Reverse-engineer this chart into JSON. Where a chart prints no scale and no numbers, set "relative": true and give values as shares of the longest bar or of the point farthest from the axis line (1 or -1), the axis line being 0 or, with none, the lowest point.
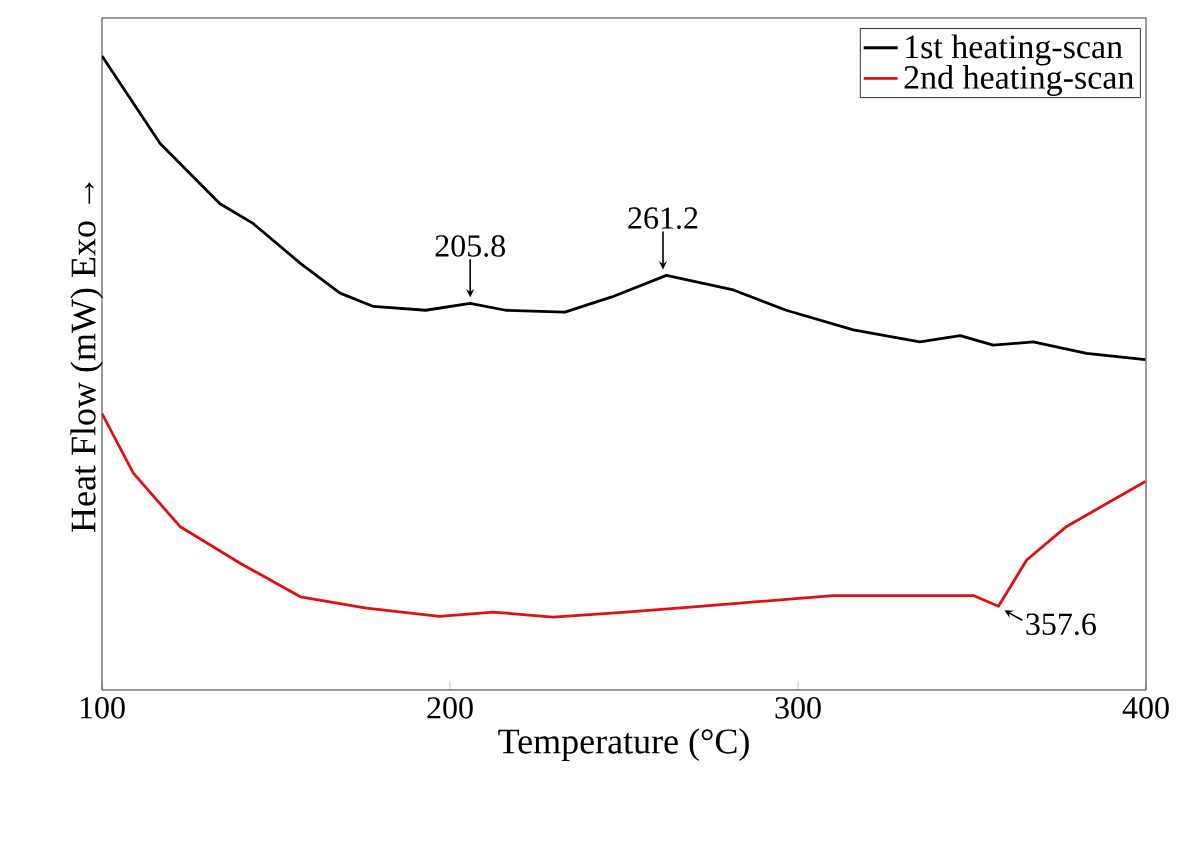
{
  "chart_data": {
    "type": "line",
    "relative": true,
    "xlabel": "Temperature (°C)",
    "ylabel": "Heat Flow (mW) Exo →",
    "xlim": [
      100,
      400
    ],
    "xticks": [
      100,
      200,
      300,
      400
    ],
    "grid": false,
    "legend": "top right",
    "marker": "none",
    "line_style": "solid",
    "series": [
      {
        "name": "1st heating-scan",
        "color": "#000000",
        "x": [
          100,
          116.7,
          133.9,
          143.4,
          157,
          168.4,
          178,
          193,
          205.8,
          216,
          233,
          246.5,
          262.2,
          281.4,
          296.6,
          315.9,
          335,
          346.6,
          356.1,
          367.6,
          382.9,
          399.8
        ],
        "values": [
          1.0,
          0.862,
          0.767,
          0.736,
          0.673,
          0.626,
          0.605,
          0.599,
          0.61,
          0.599,
          0.596,
          0.62,
          0.654,
          0.631,
          0.599,
          0.568,
          0.549,
          0.559,
          0.544,
          0.549,
          0.531,
          0.521
        ]
      },
      {
        "name": "2nd heating-scan",
        "color": "#e01010",
        "x": [
          100,
          109,
          122.4,
          139.7,
          157,
          176,
          197,
          212.4,
          229.6,
          250.6,
          271.8,
          310,
          350.4,
          357.6,
          365.7,
          377.2,
          399.8
        ],
        "values": [
          0.436,
          0.342,
          0.258,
          0.2,
          0.147,
          0.129,
          0.116,
          0.123,
          0.115,
          0.123,
          0.132,
          0.149,
          0.149,
          0.132,
          0.205,
          0.258,
          0.329
        ]
      }
    ],
    "annotations": [
      {
        "text": "205.8",
        "x": 205.8,
        "y": 0.61
      },
      {
        "text": "261.2",
        "x": 261.2,
        "y": 0.654
      },
      {
        "text": "357.6",
        "x": 357.6,
        "y": 0.132
      }
    ]
  }
}
